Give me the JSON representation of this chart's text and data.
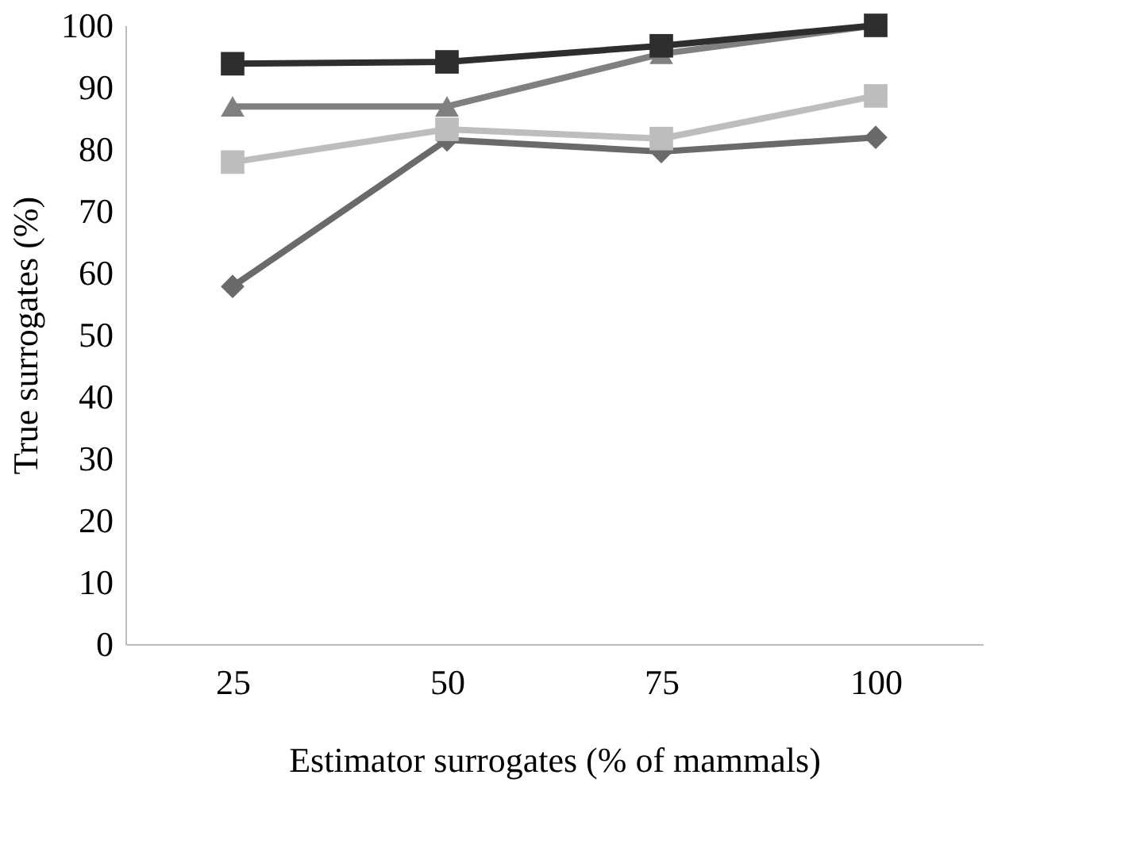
{
  "chart_data": {
    "type": "line",
    "xlabel": "Estimator surrogates (% of mammals)",
    "ylabel": "True surrogates (%)",
    "categories": [
      "25",
      "50",
      "75",
      "100"
    ],
    "ylim": [
      0,
      100
    ],
    "grid": false,
    "yticks": [
      0,
      10,
      20,
      30,
      40,
      50,
      60,
      70,
      80,
      90,
      100
    ],
    "series": [
      {
        "color": "#6a6a6a",
        "marker": "diamond",
        "values": [
          57.8,
          81.5,
          79.6,
          81.9
        ]
      },
      {
        "color": "#bdbdbd",
        "marker": "square",
        "values": [
          77.9,
          83.2,
          81.7,
          88.6
        ]
      },
      {
        "color": "#808080",
        "marker": "triangle",
        "values": [
          86.9,
          86.9,
          95.4,
          100
        ]
      },
      {
        "color": "#2e2e2e",
        "marker": "square",
        "values": [
          93.8,
          94.1,
          96.7,
          100
        ]
      }
    ]
  }
}
